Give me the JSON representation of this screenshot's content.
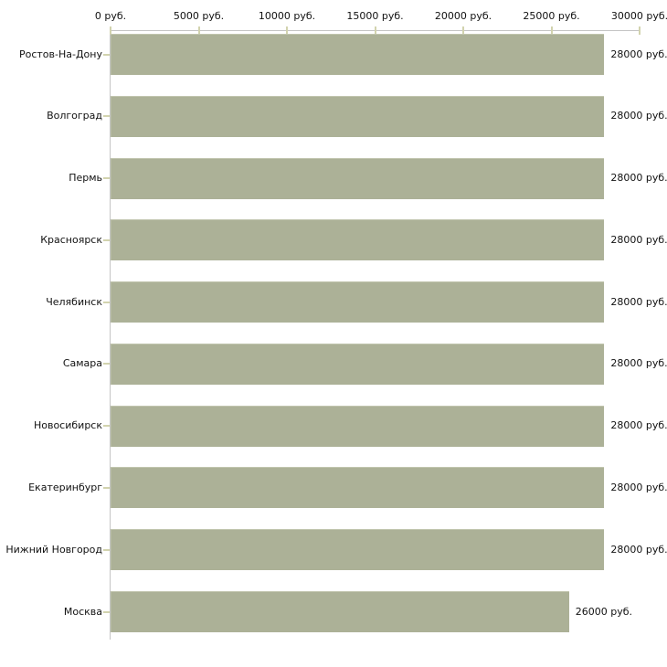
{
  "chart_data": {
    "type": "bar",
    "orientation": "horizontal",
    "title": "",
    "categories": [
      "Ростов-На-Дону",
      "Волгоград",
      "Пермь",
      "Красноярск",
      "Челябинск",
      "Самара",
      "Новосибирск",
      "Екатеринбург",
      "Нижний Новгород",
      "Москва"
    ],
    "values": [
      28000,
      28000,
      28000,
      28000,
      28000,
      28000,
      28000,
      28000,
      28000,
      26000
    ],
    "value_labels": [
      "28000 руб.",
      "28000 руб.",
      "28000 руб.",
      "28000 руб.",
      "28000 руб.",
      "28000 руб.",
      "28000 руб.",
      "28000 руб.",
      "28000 руб.",
      "26000 руб."
    ],
    "x_axis": {
      "position": "top",
      "min": 0,
      "max": 30000,
      "ticks": [
        0,
        5000,
        10000,
        15000,
        20000,
        25000,
        30000
      ],
      "tick_labels": [
        "0 руб.",
        "5000 руб.",
        "10000 руб.",
        "15000 руб.",
        "20000 руб.",
        "25000 руб.",
        "30000 руб."
      ]
    },
    "grid": false,
    "legend": "none",
    "colors": {
      "bar_fill": "#acb197",
      "bar_highlight": "#c1c5ae",
      "axis_line": "#c4c4c4",
      "tick_mark": "#d2d3ae",
      "text": "#111111",
      "background": "#ffffff"
    }
  }
}
